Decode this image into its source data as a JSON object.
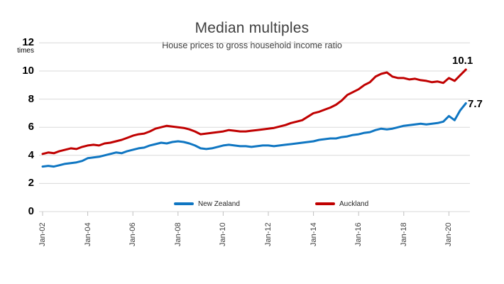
{
  "chart_data": {
    "type": "line",
    "title": "Median multiples",
    "subtitle": "House prices to gross household income ratio",
    "unit_label": "times",
    "grid": true,
    "legend_position": "bottom-inside",
    "ylim": [
      0,
      12
    ],
    "y_ticks": [
      0,
      2,
      4,
      6,
      8,
      10,
      12
    ],
    "x_tick_labels": [
      "Jan-02",
      "Jan-04",
      "Jan-06",
      "Jan-08",
      "Jan-10",
      "Jan-12",
      "Jan-14",
      "Jan-16",
      "Jan-18",
      "Jan-20"
    ],
    "x_start_year": 2002,
    "x_step_years": 0.25,
    "colors": {
      "gridline": "#d9d9d9",
      "axis_tick": "#bfbfbf",
      "title_text": "#404040",
      "axis_text": "#404040",
      "label_text": "#000000"
    },
    "series": [
      {
        "name": "New Zealand",
        "color": "#0f76c2",
        "end_label": "7.7",
        "values": [
          3.2,
          3.25,
          3.2,
          3.3,
          3.4,
          3.45,
          3.5,
          3.6,
          3.8,
          3.85,
          3.9,
          4.0,
          4.1,
          4.2,
          4.15,
          4.3,
          4.4,
          4.5,
          4.55,
          4.7,
          4.8,
          4.9,
          4.85,
          4.95,
          5.0,
          4.95,
          4.85,
          4.7,
          4.5,
          4.45,
          4.5,
          4.6,
          4.7,
          4.75,
          4.7,
          4.65,
          4.65,
          4.6,
          4.65,
          4.7,
          4.7,
          4.65,
          4.7,
          4.75,
          4.8,
          4.85,
          4.9,
          4.95,
          5.0,
          5.1,
          5.15,
          5.2,
          5.2,
          5.3,
          5.35,
          5.45,
          5.5,
          5.6,
          5.65,
          5.8,
          5.9,
          5.85,
          5.9,
          6.0,
          6.1,
          6.15,
          6.2,
          6.25,
          6.2,
          6.25,
          6.3,
          6.4,
          6.8,
          6.5,
          7.2,
          7.7
        ]
      },
      {
        "name": "Auckland",
        "color": "#c00000",
        "end_label": "10.1",
        "values": [
          4.1,
          4.2,
          4.15,
          4.3,
          4.4,
          4.5,
          4.45,
          4.6,
          4.7,
          4.75,
          4.7,
          4.85,
          4.9,
          5.0,
          5.1,
          5.25,
          5.4,
          5.5,
          5.55,
          5.7,
          5.9,
          6.0,
          6.1,
          6.05,
          6.0,
          5.95,
          5.85,
          5.7,
          5.5,
          5.55,
          5.6,
          5.65,
          5.7,
          5.8,
          5.75,
          5.7,
          5.7,
          5.75,
          5.8,
          5.85,
          5.9,
          5.95,
          6.05,
          6.15,
          6.3,
          6.4,
          6.5,
          6.75,
          7.0,
          7.1,
          7.25,
          7.4,
          7.6,
          7.9,
          8.3,
          8.5,
          8.7,
          9.0,
          9.2,
          9.6,
          9.8,
          9.9,
          9.6,
          9.5,
          9.5,
          9.4,
          9.45,
          9.35,
          9.3,
          9.2,
          9.25,
          9.15,
          9.5,
          9.3,
          9.7,
          10.1
        ]
      }
    ]
  }
}
